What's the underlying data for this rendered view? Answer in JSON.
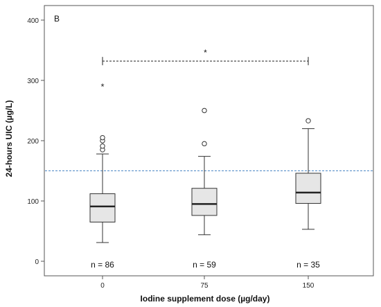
{
  "chart_data": {
    "type": "box",
    "panel_label": "B",
    "xlabel": "Iodine supplement dose (µg/day)",
    "ylabel": "24-hours UIC (µg/L)",
    "ylim": [
      -20,
      420
    ],
    "yticks": [
      0,
      100,
      200,
      300,
      400
    ],
    "categories": [
      "0",
      "75",
      "150"
    ],
    "reference_line": {
      "value": 150,
      "style": "dashed",
      "color": "#4a86c5"
    },
    "boxes": [
      {
        "category": "0",
        "min": 31,
        "q1": 65,
        "median": 91,
        "q3": 112,
        "max": 178,
        "outliers": [
          185,
          191,
          200,
          205
        ],
        "extremes": [
          290
        ],
        "n_label": "n = 86"
      },
      {
        "category": "75",
        "min": 44,
        "q1": 76,
        "median": 95,
        "q3": 121,
        "max": 174,
        "outliers": [
          195,
          250
        ],
        "extremes": [],
        "n_label": "n = 59"
      },
      {
        "category": "150",
        "min": 53,
        "q1": 96,
        "median": 114,
        "q3": 146,
        "max": 220,
        "outliers": [
          233
        ],
        "extremes": [],
        "n_label": "n = 35"
      }
    ],
    "significance": {
      "from": "0",
      "to": "150",
      "y": 332,
      "label": "*"
    },
    "colors": {
      "box_fill": "#e6e6e6",
      "stroke": "#333333",
      "frame": "#555555"
    }
  }
}
